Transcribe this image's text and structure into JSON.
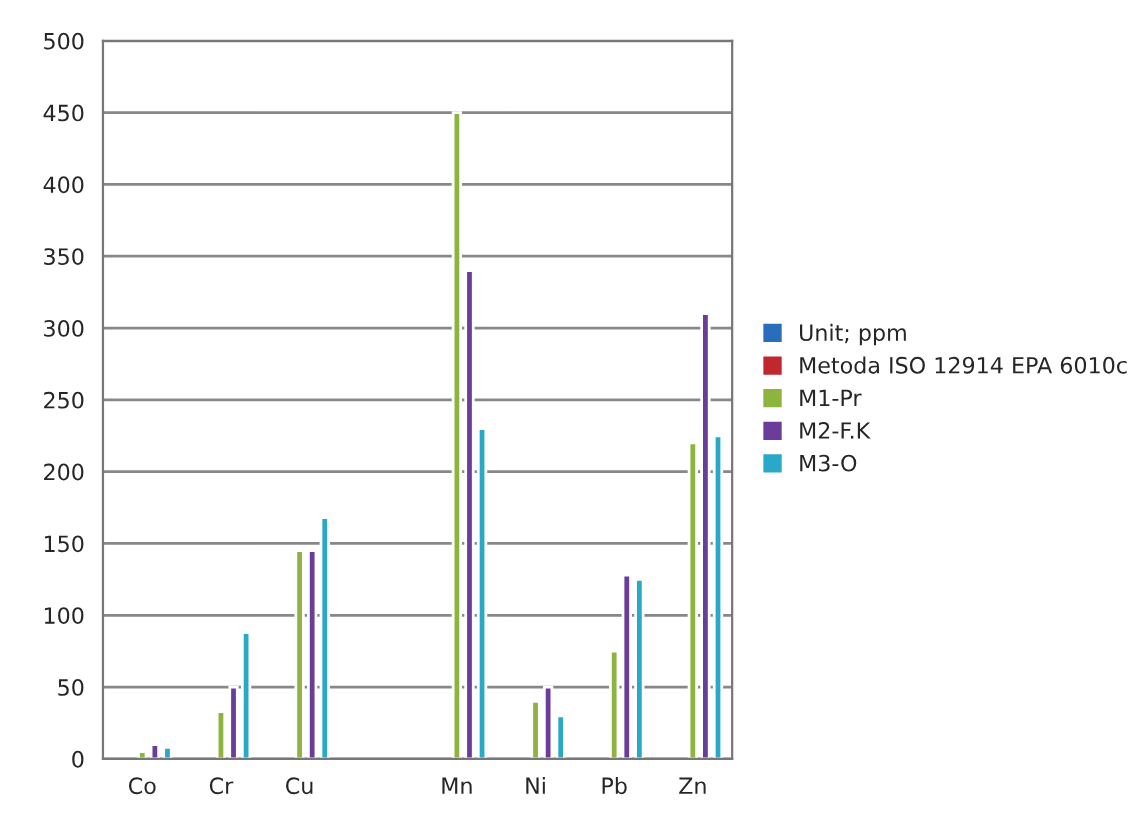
{
  "chart_data": {
    "type": "bar",
    "categories": [
      "Co",
      "Cr",
      "Cu",
      null,
      "Mn",
      "Ni",
      "Pb",
      "Zn"
    ],
    "series": [
      {
        "name": "Unit; ppm",
        "color": "#2a6ebb",
        "values": [
          null,
          null,
          null,
          null,
          null,
          null,
          null,
          null
        ]
      },
      {
        "name": "Metoda ISO 12914 EPA 6010c",
        "color": "#c0282d",
        "values": [
          null,
          null,
          null,
          null,
          null,
          null,
          null,
          null
        ]
      },
      {
        "name": "M1-Pr",
        "color": "#8db43e",
        "values": [
          5,
          33,
          145,
          null,
          450,
          40,
          75,
          220
        ]
      },
      {
        "name": "M2-F.K",
        "color": "#6a3d9a",
        "values": [
          10,
          50,
          145,
          null,
          340,
          50,
          128,
          310
        ]
      },
      {
        "name": "M3-O",
        "color": "#2aa8c8",
        "values": [
          8,
          88,
          168,
          null,
          230,
          30,
          125,
          225
        ]
      }
    ],
    "ylim": [
      0,
      500
    ],
    "yticks": [
      0,
      50,
      100,
      150,
      200,
      250,
      300,
      350,
      400,
      450,
      500
    ],
    "grid": "y",
    "legend": "right"
  }
}
